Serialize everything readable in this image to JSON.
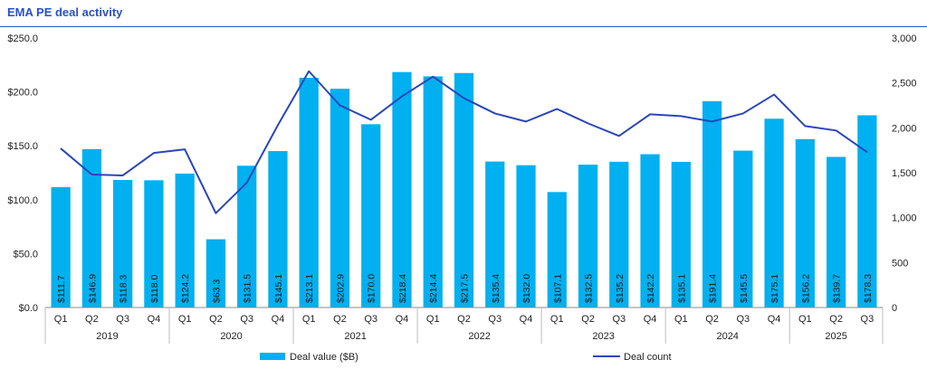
{
  "title": "EMA PE deal activity",
  "colors": {
    "bar": "#00b0f0",
    "line": "#2a46b9",
    "title": "#2a50c8",
    "axis": "#222222"
  },
  "chart_data": {
    "type": "bar",
    "title": "EMA PE deal activity",
    "categories": [
      "Q1",
      "Q2",
      "Q3",
      "Q4",
      "Q1",
      "Q2",
      "Q3",
      "Q4",
      "Q1",
      "Q2",
      "Q3",
      "Q4",
      "Q1",
      "Q2",
      "Q3",
      "Q4",
      "Q1",
      "Q2",
      "Q3",
      "Q4",
      "Q1",
      "Q2",
      "Q3",
      "Q4",
      "Q1",
      "Q2",
      "Q3"
    ],
    "years": [
      {
        "label": "2019",
        "count": 4
      },
      {
        "label": "2020",
        "count": 4
      },
      {
        "label": "2021",
        "count": 4
      },
      {
        "label": "2022",
        "count": 4
      },
      {
        "label": "2023",
        "count": 4
      },
      {
        "label": "2024",
        "count": 4
      },
      {
        "label": "2025",
        "count": 3
      }
    ],
    "series": [
      {
        "name": "Deal value ($B)",
        "type": "bar",
        "axis": "left",
        "values": [
          111.7,
          146.9,
          118.3,
          118.0,
          124.2,
          63.3,
          131.5,
          145.1,
          213.1,
          202.9,
          170.0,
          218.4,
          214.4,
          217.5,
          135.4,
          132.0,
          107.1,
          132.5,
          135.2,
          142.2,
          135.1,
          191.4,
          145.5,
          175.1,
          156.2,
          139.7,
          178.3
        ],
        "labels": [
          "$111.7",
          "$146.9",
          "$118.3",
          "$118.0",
          "$124.2",
          "$63.3",
          "$131.5",
          "$145.1",
          "$213.1",
          "$202.9",
          "$170.0",
          "$218.4",
          "$214.4",
          "$217.5",
          "$135.4",
          "$132.0",
          "$107.1",
          "$132.5",
          "$135.2",
          "$142.2",
          "$135.1",
          "$191.4",
          "$145.5",
          "$175.1",
          "$156.2",
          "$139.7",
          "$178.3"
        ]
      },
      {
        "name": "Deal count",
        "type": "line",
        "axis": "right",
        "values": [
          1770,
          1480,
          1470,
          1720,
          1760,
          1050,
          1390,
          2030,
          2630,
          2250,
          2090,
          2350,
          2570,
          2330,
          2160,
          2070,
          2210,
          2050,
          1910,
          2150,
          2130,
          2070,
          2160,
          2370,
          2020,
          1970,
          1730
        ]
      }
    ],
    "y_left": {
      "ylim": [
        0,
        250
      ],
      "ticks": [
        "$0.0",
        "$50.0",
        "$100.0",
        "$150.0",
        "$200.0",
        "$250.0"
      ],
      "tick_values": [
        0,
        50,
        100,
        150,
        200,
        250
      ]
    },
    "y_right": {
      "ylim": [
        0,
        3000
      ],
      "ticks": [
        "0",
        "500",
        "1,000",
        "1,500",
        "2,000",
        "2,500",
        "3,000"
      ],
      "tick_values": [
        0,
        500,
        1000,
        1500,
        2000,
        2500,
        3000
      ]
    },
    "legend": {
      "position": "bottom",
      "items": [
        "Deal value ($B)",
        "Deal count"
      ]
    },
    "grid": false
  }
}
